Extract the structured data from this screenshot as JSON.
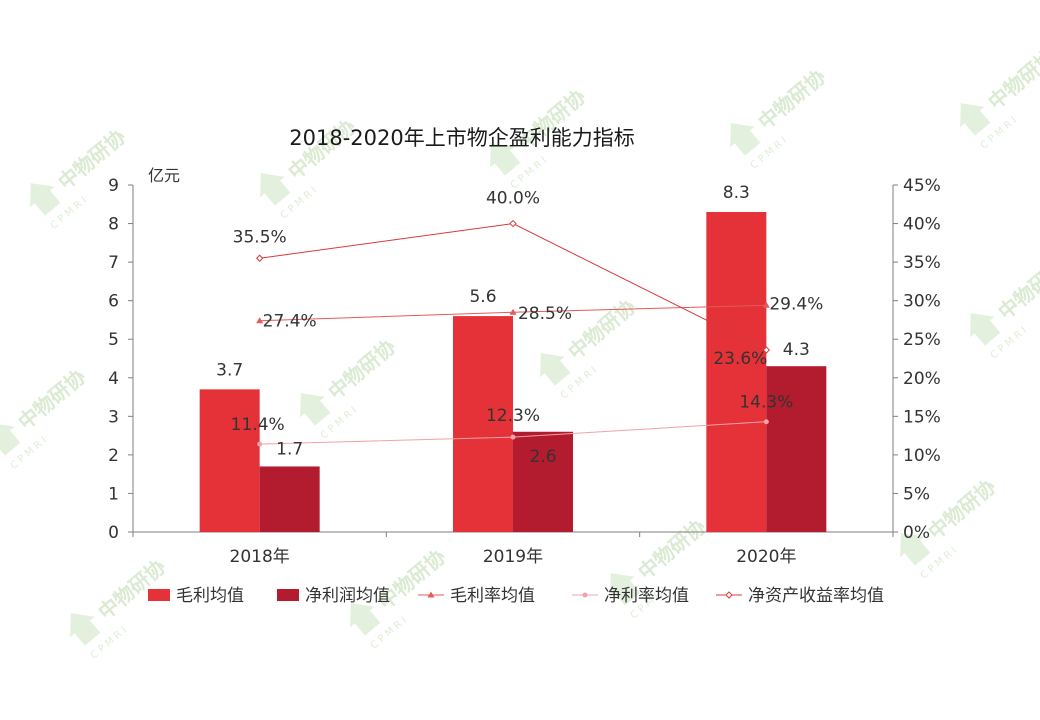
{
  "watermark": {
    "text": "中物研协",
    "sub": "CPMRI"
  },
  "chart_data": {
    "type": "bar",
    "title": "2018-2020年上市物企盈利能力指标",
    "y_unit_label": "亿元",
    "categories": [
      "2018年",
      "2019年",
      "2020年"
    ],
    "ylim": [
      0,
      9
    ],
    "y_ticks": [
      "0",
      "1",
      "2",
      "3",
      "4",
      "5",
      "6",
      "7",
      "8",
      "9"
    ],
    "y2lim": [
      0,
      45
    ],
    "y2_ticks": [
      "0%",
      "5%",
      "10%",
      "15%",
      "20%",
      "25%",
      "30%",
      "35%",
      "40%",
      "45%"
    ],
    "grid": false,
    "legend_position": "bottom",
    "bar_series": [
      {
        "name": "毛利均值",
        "values": [
          3.7,
          5.6,
          8.3
        ],
        "labels": [
          "3.7",
          "5.6",
          "8.3"
        ],
        "color": "#e53238"
      },
      {
        "name": "净利润均值",
        "values": [
          1.7,
          2.6,
          4.3
        ],
        "labels": [
          "1.7",
          "2.6",
          "4.3"
        ],
        "color": "#b31b2f"
      }
    ],
    "line_series": [
      {
        "name": "毛利率均值",
        "values": [
          27.4,
          28.5,
          29.4
        ],
        "labels": [
          "27.4%",
          "28.5%",
          "29.4%"
        ],
        "color": "#e55a5a",
        "marker": "triangle"
      },
      {
        "name": "净利率均值",
        "values": [
          11.4,
          12.3,
          14.3
        ],
        "labels": [
          "11.4%",
          "12.3%",
          "14.3%"
        ],
        "color": "#f0a3a8",
        "marker": "dot"
      },
      {
        "name": "净资产收益率均值",
        "values": [
          35.5,
          40.0,
          23.6
        ],
        "labels": [
          "35.5%",
          "40.0%",
          "23.6%"
        ],
        "color": "#d83a3a",
        "marker": "diamond"
      }
    ]
  }
}
